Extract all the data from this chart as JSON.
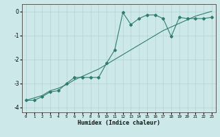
{
  "xlabel": "Humidex (Indice chaleur)",
  "ylabel": "",
  "background_color": "#cde8e8",
  "grid_color": "#b8d4d4",
  "line_color": "#2e7d6e",
  "x_data": [
    0,
    1,
    2,
    3,
    4,
    5,
    6,
    7,
    8,
    9,
    10,
    11,
    12,
    13,
    14,
    15,
    16,
    17,
    18,
    19,
    20,
    21,
    22,
    23
  ],
  "y_jagged": [
    -3.7,
    -3.7,
    -3.55,
    -3.35,
    -3.3,
    -3.0,
    -2.75,
    -2.75,
    -2.75,
    -2.75,
    -2.15,
    -1.6,
    -0.05,
    -0.55,
    -0.3,
    -0.15,
    -0.15,
    -0.3,
    -1.05,
    -0.25,
    -0.3,
    -0.3,
    -0.3,
    -0.25
  ],
  "y_linear": [
    -3.7,
    -3.6,
    -3.5,
    -3.3,
    -3.2,
    -3.05,
    -2.85,
    -2.7,
    -2.55,
    -2.4,
    -2.2,
    -2.0,
    -1.8,
    -1.6,
    -1.4,
    -1.2,
    -1.0,
    -0.8,
    -0.65,
    -0.5,
    -0.35,
    -0.2,
    -0.1,
    0.0
  ],
  "ylim": [
    -4.2,
    0.3
  ],
  "xlim": [
    -0.5,
    23.5
  ],
  "yticks": [
    0,
    -1,
    -2,
    -3,
    -4
  ],
  "xticks": [
    0,
    1,
    2,
    3,
    4,
    5,
    6,
    7,
    8,
    9,
    10,
    11,
    12,
    13,
    14,
    15,
    16,
    17,
    18,
    19,
    20,
    21,
    22,
    23
  ],
  "xtick_labels": [
    "0",
    "1",
    "2",
    "3",
    "4",
    "5",
    "6",
    "7",
    "8",
    "9",
    "10",
    "11",
    "12",
    "13",
    "14",
    "15",
    "16",
    "17",
    "18",
    "19",
    "20",
    "21",
    "22",
    "23"
  ],
  "marker": "D",
  "markersize": 2.0,
  "linewidth": 0.8
}
